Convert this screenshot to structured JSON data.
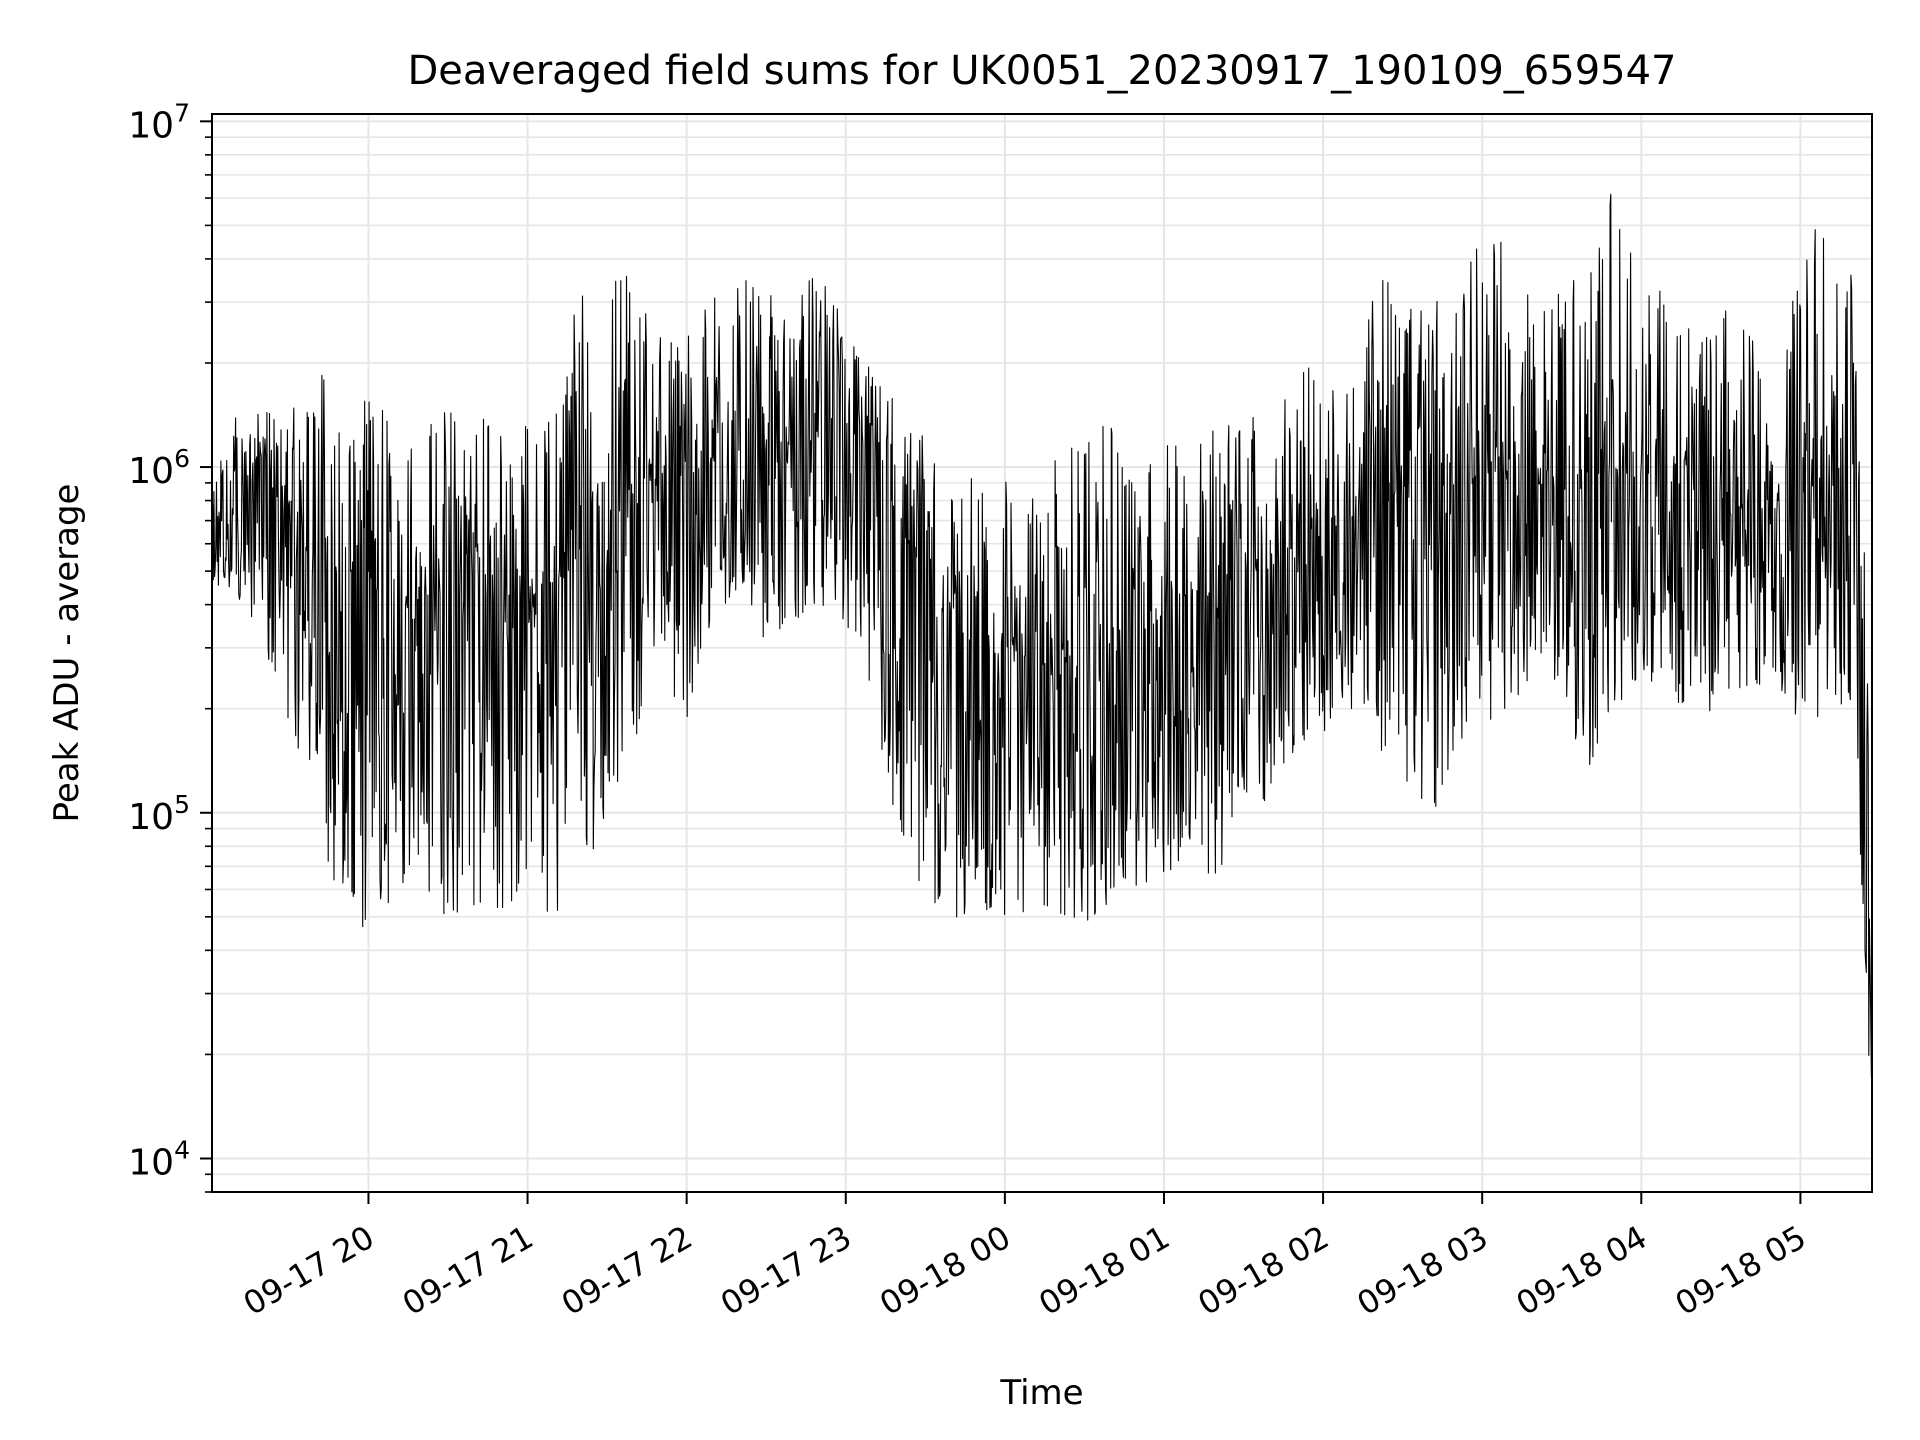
{
  "chart_data": {
    "type": "line",
    "title": "Deaveraged field sums for UK0051_20230917_190109_659547",
    "xlabel": "Time",
    "ylabel": "Peak ADU - average",
    "yscale": "log",
    "grid": true,
    "line_color": "#000000",
    "grid_color": "#e6e6e6",
    "xlim": [
      "2023-09-17 19:01",
      "2023-09-18 05:27"
    ],
    "ylim": [
      8000,
      10500000
    ],
    "xticks": [
      {
        "t": "2023-09-17 20:00",
        "label": "09-17 20"
      },
      {
        "t": "2023-09-17 21:00",
        "label": "09-17 21"
      },
      {
        "t": "2023-09-17 22:00",
        "label": "09-17 22"
      },
      {
        "t": "2023-09-17 23:00",
        "label": "09-17 23"
      },
      {
        "t": "2023-09-18 00:00",
        "label": "09-18 00"
      },
      {
        "t": "2023-09-18 01:00",
        "label": "09-18 01"
      },
      {
        "t": "2023-09-18 02:00",
        "label": "09-18 02"
      },
      {
        "t": "2023-09-18 03:00",
        "label": "09-18 03"
      },
      {
        "t": "2023-09-18 04:00",
        "label": "09-18 04"
      },
      {
        "t": "2023-09-18 05:00",
        "label": "09-18 05"
      }
    ],
    "yticks": [
      {
        "value": 10000,
        "base": "10",
        "exp": "4"
      },
      {
        "value": 100000,
        "base": "10",
        "exp": "5"
      },
      {
        "value": 1000000,
        "base": "10",
        "exp": "6"
      },
      {
        "value": 10000000,
        "base": "10",
        "exp": "7"
      }
    ],
    "series": [
      {
        "x": [
          "2023-09-17 19:01",
          "2023-09-17 19:10",
          "2023-09-17 19:20",
          "2023-09-17 19:30",
          "2023-09-17 19:40",
          "2023-09-17 19:50",
          "2023-09-17 20:00",
          "2023-09-17 20:10",
          "2023-09-17 20:20",
          "2023-09-17 20:30",
          "2023-09-17 20:40",
          "2023-09-17 20:50",
          "2023-09-17 21:00",
          "2023-09-17 21:10",
          "2023-09-17 21:20",
          "2023-09-17 21:30",
          "2023-09-17 21:40",
          "2023-09-17 21:50",
          "2023-09-17 22:00",
          "2023-09-17 22:10",
          "2023-09-17 22:20",
          "2023-09-17 22:30",
          "2023-09-17 22:40",
          "2023-09-17 22:50",
          "2023-09-17 23:00",
          "2023-09-17 23:10",
          "2023-09-17 23:20",
          "2023-09-17 23:30",
          "2023-09-17 23:40",
          "2023-09-17 23:50",
          "2023-09-18 00:00",
          "2023-09-18 00:10",
          "2023-09-18 00:20",
          "2023-09-18 00:30",
          "2023-09-18 00:40",
          "2023-09-18 00:50",
          "2023-09-18 01:00",
          "2023-09-18 01:10",
          "2023-09-18 01:20",
          "2023-09-18 01:30",
          "2023-09-18 01:40",
          "2023-09-18 01:50",
          "2023-09-18 02:00",
          "2023-09-18 02:10",
          "2023-09-18 02:20",
          "2023-09-18 02:30",
          "2023-09-18 02:40",
          "2023-09-18 02:50",
          "2023-09-18 03:00",
          "2023-09-18 03:10",
          "2023-09-18 03:20",
          "2023-09-18 03:30",
          "2023-09-18 03:40",
          "2023-09-18 03:50",
          "2023-09-18 04:00",
          "2023-09-18 04:10",
          "2023-09-18 04:20",
          "2023-09-18 04:30",
          "2023-09-18 04:40",
          "2023-09-18 04:50",
          "2023-09-18 05:00",
          "2023-09-18 05:10",
          "2023-09-18 05:20",
          "2023-09-18 05:27"
        ],
        "y_median": [
          650000,
          700000,
          1100000,
          600000,
          550000,
          500000,
          450000,
          400000,
          380000,
          400000,
          420000,
          400000,
          420000,
          450000,
          550000,
          700000,
          800000,
          900000,
          950000,
          1000000,
          1050000,
          1100000,
          1150000,
          1200000,
          1300000,
          1100000,
          700000,
          450000,
          350000,
          300000,
          280000,
          260000,
          230000,
          230000,
          260000,
          300000,
          380000,
          420000,
          450000,
          480000,
          500000,
          550000,
          650000,
          700000,
          750000,
          800000,
          850000,
          850000,
          900000,
          950000,
          900000,
          850000,
          900000,
          950000,
          950000,
          900000,
          850000,
          800000,
          750000,
          700000,
          750000,
          900000,
          700000,
          30000
        ],
        "y_min": [
          460000,
          400000,
          300000,
          180000,
          90000,
          50000,
          45000,
          55000,
          55000,
          50000,
          48000,
          50000,
          52000,
          50000,
          60000,
          100000,
          150000,
          250000,
          160000,
          350000,
          400000,
          300000,
          350000,
          400000,
          350000,
          200000,
          80000,
          55000,
          50000,
          48000,
          50000,
          47000,
          46000,
          48000,
          55000,
          60000,
          65000,
          70000,
          65000,
          80000,
          100000,
          150000,
          160000,
          200000,
          160000,
          120000,
          90000,
          150000,
          180000,
          200000,
          250000,
          220000,
          120000,
          200000,
          250000,
          220000,
          180000,
          200000,
          220000,
          250000,
          160000,
          200000,
          180000,
          11000
        ],
        "y_max": [
          900000,
          1400000,
          1450000,
          1400000,
          2200000,
          1450000,
          1700000,
          1450000,
          1400000,
          1550000,
          1500000,
          1450000,
          1550000,
          1400000,
          4200000,
          4100000,
          3800000,
          2600000,
          2500000,
          3100000,
          3600000,
          3100000,
          3300000,
          3600000,
          2600000,
          1900000,
          1500000,
          1200000,
          1100000,
          1000000,
          950000,
          850000,
          1350000,
          1150000,
          1400000,
          1400000,
          1350000,
          1300000,
          1500000,
          1350000,
          1600000,
          1900000,
          2000000,
          1800000,
          3600000,
          3400000,
          3000000,
          3200000,
          5300000,
          4200000,
          3100000,
          3700000,
          3400000,
          7500000,
          3200000,
          3300000,
          2400000,
          2900000,
          2800000,
          1300000,
          4300000,
          7000000,
          4000000,
          150000
        ]
      }
    ]
  }
}
